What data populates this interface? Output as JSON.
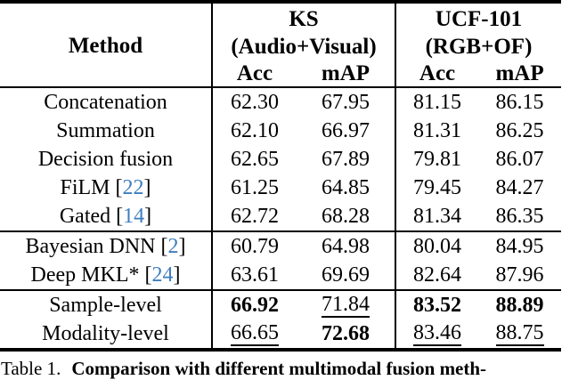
{
  "table": {
    "header": {
      "method": "Method",
      "group1": {
        "title": "KS",
        "subtitle": "(Audio+Visual)",
        "col1": "Acc",
        "col2": "mAP"
      },
      "group2": {
        "title": "UCF-101",
        "subtitle": "(RGB+OF)",
        "col1": "Acc",
        "col2": "mAP"
      }
    },
    "rows": [
      {
        "m1": "Concatenation",
        "cite": "",
        "m2": "",
        "ks_acc": "62.30",
        "ks_map": "67.95",
        "ucf_acc": "81.15",
        "ucf_map": "86.15"
      },
      {
        "m1": "Summation",
        "cite": "",
        "m2": "",
        "ks_acc": "62.10",
        "ks_map": "66.97",
        "ucf_acc": "81.31",
        "ucf_map": "86.25"
      },
      {
        "m1": "Decision fusion",
        "cite": "",
        "m2": "",
        "ks_acc": "62.65",
        "ks_map": "67.89",
        "ucf_acc": "79.81",
        "ucf_map": "86.07"
      },
      {
        "m1": "FiLM [",
        "cite": "22",
        "m2": "]",
        "ks_acc": "61.25",
        "ks_map": "64.85",
        "ucf_acc": "79.45",
        "ucf_map": "84.27"
      },
      {
        "m1": "Gated [",
        "cite": "14",
        "m2": "]",
        "ks_acc": "62.72",
        "ks_map": "68.28",
        "ucf_acc": "81.34",
        "ucf_map": "86.35"
      },
      {
        "m1": "Bayesian DNN [",
        "cite": "2",
        "m2": "]",
        "ks_acc": "60.79",
        "ks_map": "64.98",
        "ucf_acc": "80.04",
        "ucf_map": "84.95"
      },
      {
        "m1": "Deep MKL* [",
        "cite": "24",
        "m2": "]",
        "ks_acc": "63.61",
        "ks_map": "69.69",
        "ucf_acc": "82.64",
        "ucf_map": "87.96"
      },
      {
        "m1": "Sample-level",
        "cite": "",
        "m2": "",
        "ks_acc": "66.92",
        "ks_map": "71.84",
        "ucf_acc": "83.52",
        "ucf_map": "88.89"
      },
      {
        "m1": "Modality-level",
        "cite": "",
        "m2": "",
        "ks_acc": "66.65",
        "ks_map": "72.68",
        "ucf_acc": "83.46",
        "ucf_map": "88.75"
      }
    ]
  },
  "caption": {
    "label": "Table 1.",
    "text": "Comparison with different multimodal fusion meth-"
  },
  "colors": {
    "text": "#000000",
    "background": "#FFFFFF",
    "citation_blue": "#3E7DBF"
  }
}
